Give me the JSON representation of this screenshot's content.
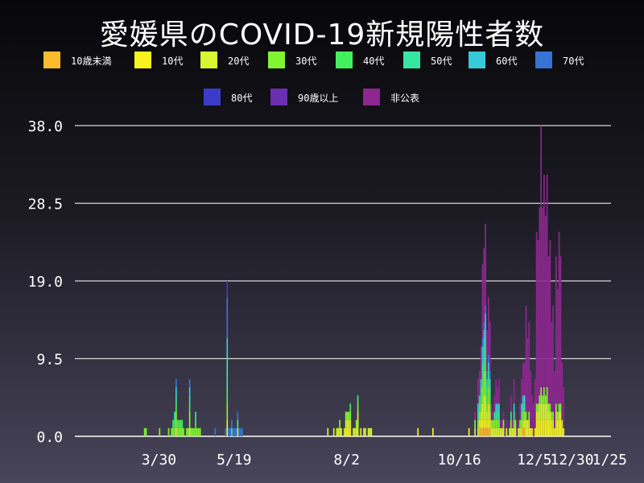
{
  "title": "愛媛県のCOVID-19新規陽性者数",
  "legend": [
    {
      "label": "10歳未満",
      "color": "#fbbc2b"
    },
    {
      "label": "10代",
      "color": "#f7f41d"
    },
    {
      "label": "20代",
      "color": "#d8f631"
    },
    {
      "label": "30代",
      "color": "#82f532"
    },
    {
      "label": "40代",
      "color": "#44f05c"
    },
    {
      "label": "50代",
      "color": "#37e6a0"
    },
    {
      "label": "60代",
      "color": "#37cbd9"
    },
    {
      "label": "70代",
      "color": "#3774d6"
    },
    {
      "label": "80代",
      "color": "#3a3cc8"
    },
    {
      "label": "90歳以上",
      "color": "#6a2eb0"
    },
    {
      "label": "非公表",
      "color": "#8e2690"
    }
  ],
  "chart_data": {
    "type": "bar",
    "stacked": true,
    "grid": true,
    "ylim": [
      0,
      38
    ],
    "y_ticks": [
      "0.0",
      "9.5",
      "19.0",
      "28.5",
      "38.0"
    ],
    "y_tick_values": [
      0,
      9.5,
      19,
      28.5,
      38
    ],
    "x_ticks": [
      "3/30",
      "5/19",
      "8/2",
      "10/16",
      "12/5",
      "12/30",
      "1/25"
    ],
    "x_tick_index": [
      56,
      106,
      181,
      256,
      306,
      331,
      357
    ],
    "day_count": 357,
    "totals": [
      [
        46,
        1
      ],
      [
        47,
        1
      ],
      [
        56,
        1
      ],
      [
        62,
        1
      ],
      [
        64,
        1
      ],
      [
        65,
        2
      ],
      [
        66,
        3
      ],
      [
        67,
        7
      ],
      [
        68,
        2
      ],
      [
        69,
        2
      ],
      [
        70,
        2
      ],
      [
        71,
        2
      ],
      [
        72,
        1
      ],
      [
        74,
        1
      ],
      [
        75,
        1
      ],
      [
        76,
        7
      ],
      [
        77,
        1
      ],
      [
        78,
        1
      ],
      [
        79,
        1
      ],
      [
        80,
        3
      ],
      [
        81,
        1
      ],
      [
        82,
        1
      ],
      [
        83,
        1
      ],
      [
        93,
        1
      ],
      [
        100,
        1
      ],
      [
        101,
        19
      ],
      [
        102,
        1
      ],
      [
        103,
        1
      ],
      [
        104,
        2
      ],
      [
        105,
        1
      ],
      [
        106,
        1
      ],
      [
        107,
        1
      ],
      [
        108,
        3
      ],
      [
        109,
        1
      ],
      [
        110,
        1
      ],
      [
        111,
        1
      ],
      [
        168,
        1
      ],
      [
        172,
        1
      ],
      [
        174,
        1
      ],
      [
        175,
        1
      ],
      [
        176,
        2
      ],
      [
        177,
        1
      ],
      [
        179,
        1
      ],
      [
        180,
        3
      ],
      [
        181,
        3
      ],
      [
        182,
        3
      ],
      [
        183,
        4
      ],
      [
        185,
        1
      ],
      [
        186,
        1
      ],
      [
        187,
        2
      ],
      [
        188,
        5
      ],
      [
        190,
        1
      ],
      [
        192,
        1
      ],
      [
        193,
        1
      ],
      [
        195,
        1
      ],
      [
        196,
        1
      ],
      [
        197,
        1
      ],
      [
        228,
        1
      ],
      [
        238,
        1
      ],
      [
        262,
        1
      ],
      [
        266,
        3
      ],
      [
        268,
        7
      ],
      [
        269,
        8
      ],
      [
        270,
        11
      ],
      [
        271,
        21
      ],
      [
        272,
        23
      ],
      [
        273,
        26
      ],
      [
        274,
        13
      ],
      [
        275,
        17
      ],
      [
        276,
        14
      ],
      [
        277,
        4
      ],
      [
        278,
        3
      ],
      [
        279,
        5
      ],
      [
        280,
        7
      ],
      [
        281,
        6
      ],
      [
        282,
        7
      ],
      [
        283,
        2
      ],
      [
        284,
        2
      ],
      [
        285,
        3
      ],
      [
        286,
        1
      ],
      [
        287,
        2
      ],
      [
        289,
        2
      ],
      [
        290,
        5
      ],
      [
        291,
        2
      ],
      [
        292,
        7
      ],
      [
        293,
        3
      ],
      [
        294,
        1
      ],
      [
        295,
        2
      ],
      [
        296,
        4
      ],
      [
        297,
        7
      ],
      [
        298,
        9
      ],
      [
        299,
        9
      ],
      [
        300,
        16
      ],
      [
        301,
        12
      ],
      [
        302,
        14
      ],
      [
        303,
        8
      ],
      [
        304,
        5
      ],
      [
        305,
        4
      ],
      [
        306,
        7
      ],
      [
        307,
        25
      ],
      [
        308,
        24
      ],
      [
        309,
        28
      ],
      [
        310,
        38
      ],
      [
        311,
        28
      ],
      [
        312,
        32
      ],
      [
        313,
        27
      ],
      [
        314,
        32
      ],
      [
        315,
        22
      ],
      [
        316,
        24
      ],
      [
        317,
        14
      ],
      [
        318,
        16
      ],
      [
        319,
        8
      ],
      [
        320,
        22
      ],
      [
        321,
        18
      ],
      [
        322,
        25
      ],
      [
        323,
        22
      ],
      [
        324,
        9
      ],
      [
        325,
        6
      ]
    ]
  }
}
